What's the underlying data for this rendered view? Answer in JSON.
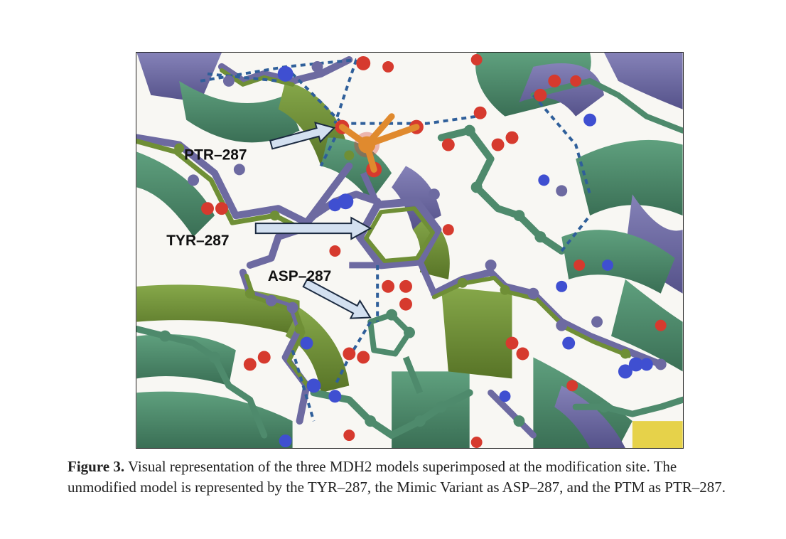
{
  "figure": {
    "labels": {
      "ptr": "PTR–287",
      "tyr": "TYR–287",
      "asp": "ASP–287"
    },
    "colors": {
      "ribbon_green": "#4e8a6c",
      "ribbon_purple": "#6d6aa1",
      "ribbon_olive": "#6f8f36",
      "oxygen": "#d63a2e",
      "nitrogen": "#3f4fd1",
      "phosphorus": "#e08a2e",
      "arrow": "#d3e0f0"
    }
  },
  "caption": {
    "label": "Figure 3.",
    "text": " Visual representation of the three MDH2 models superimposed at the modification site. The unmodified model is represented by the TYR–287, the Mimic Variant as ASP–287, and the PTM as PTR–287."
  }
}
